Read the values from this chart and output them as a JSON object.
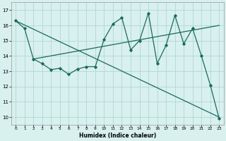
{
  "xlabel": "Humidex (Indice chaleur)",
  "bg_color": "#d8f0ee",
  "grid_color": "#b0d8d4",
  "line_color": "#1a6b5a",
  "xlim": [
    -0.5,
    23.5
  ],
  "ylim": [
    9.5,
    17.5
  ],
  "yticks": [
    10,
    11,
    12,
    13,
    14,
    15,
    16,
    17
  ],
  "xticks": [
    0,
    1,
    2,
    3,
    4,
    5,
    6,
    7,
    8,
    9,
    10,
    11,
    12,
    13,
    14,
    15,
    16,
    17,
    18,
    19,
    20,
    21,
    22,
    23
  ],
  "series": [
    [
      0,
      16.3
    ],
    [
      1,
      15.8
    ],
    [
      2,
      13.8
    ],
    [
      3,
      13.5
    ],
    [
      4,
      13.1
    ],
    [
      5,
      13.2
    ],
    [
      6,
      12.8
    ],
    [
      7,
      13.15
    ],
    [
      8,
      13.3
    ],
    [
      9,
      13.3
    ],
    [
      10,
      15.1
    ],
    [
      11,
      16.1
    ],
    [
      12,
      16.5
    ],
    [
      13,
      14.4
    ],
    [
      14,
      15.0
    ],
    [
      15,
      16.8
    ],
    [
      16,
      13.5
    ],
    [
      17,
      14.7
    ],
    [
      18,
      16.65
    ],
    [
      19,
      14.8
    ],
    [
      20,
      15.8
    ],
    [
      21,
      14.0
    ],
    [
      22,
      12.1
    ],
    [
      23,
      9.9
    ]
  ],
  "line1_x": [
    0,
    23
  ],
  "line1_y": [
    16.3,
    10.0
  ],
  "line2_x": [
    2,
    23
  ],
  "line2_y": [
    13.8,
    16.0
  ]
}
